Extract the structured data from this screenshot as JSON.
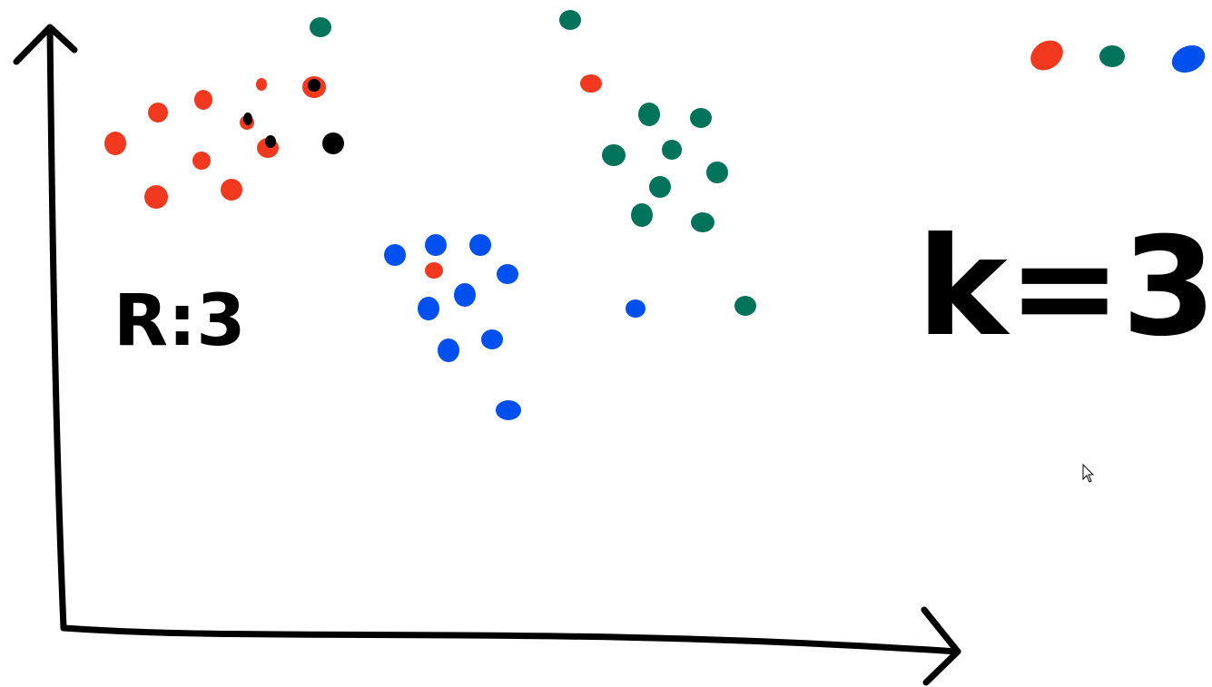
{
  "annotations": {
    "left_label": "R:3",
    "right_label": "k=3"
  }
}
